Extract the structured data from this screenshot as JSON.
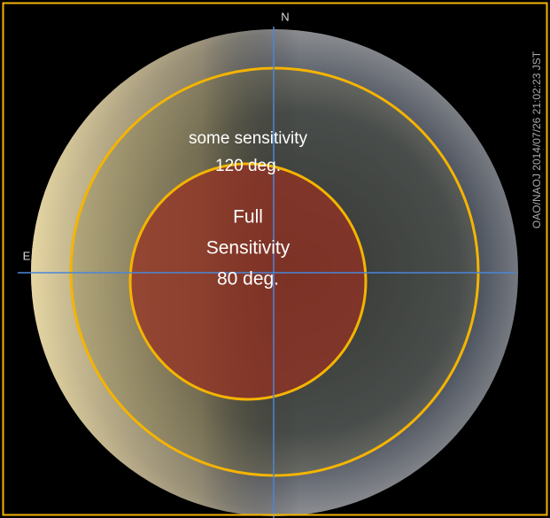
{
  "image": {
    "north_label": "N",
    "east_label": "E",
    "timestamp": "OAO/NAOJ 2014/07/26 21:02:23 JST",
    "outer_zone": {
      "line1": "some sensitivity",
      "line2": "120 deg."
    },
    "inner_zone": {
      "line1": "Full",
      "line2": "Sensitivity",
      "line3": "80 deg."
    }
  }
}
